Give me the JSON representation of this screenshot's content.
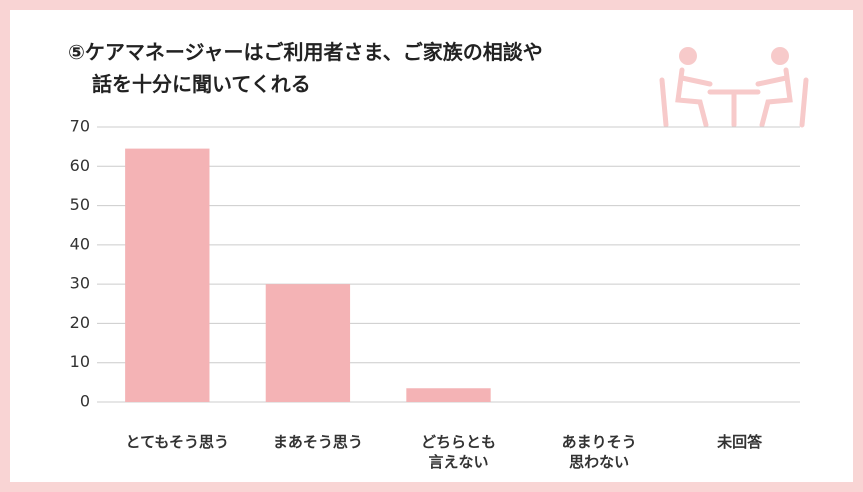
{
  "chart_data": {
    "type": "bar",
    "title": "⑤ケアマネージャーはご利用者さま、ご家族の相談や\n話を十分に聞いてくれる",
    "categories": [
      "とてもそう思う",
      "まあそう思う",
      "どちらとも\n言えない",
      "あまりそう\n思わない",
      "未回答"
    ],
    "values": [
      64.5,
      30,
      3.5,
      0,
      0
    ],
    "color": "#f4b3b5",
    "ylim": [
      0,
      70
    ],
    "yticks": [
      0,
      10,
      20,
      30,
      40,
      50,
      60,
      70
    ],
    "grid": true
  }
}
